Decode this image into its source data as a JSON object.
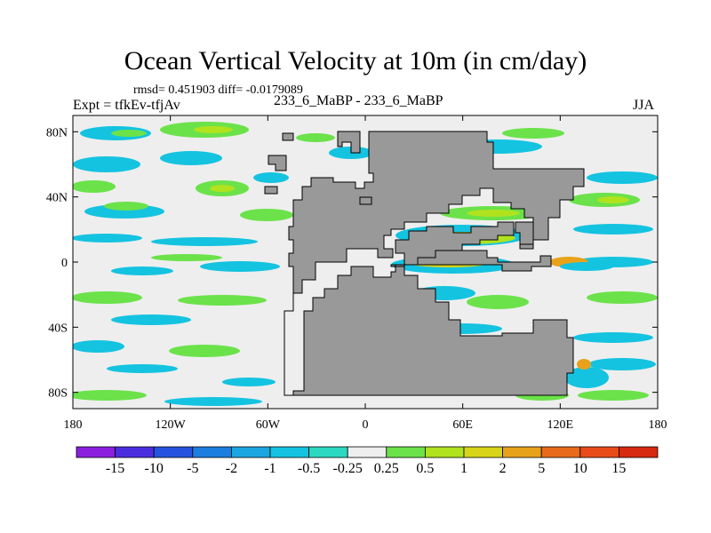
{
  "title": "Ocean Vertical Velocity at 10m (in cm/day)",
  "stats_line": "rmsd= 0.451903 diff= -0.0179089",
  "experiment_label": "Expt = tfkEv-tfjAv",
  "center_label": "233_6_MaBP - 233_6_MaBP",
  "season": "JJA",
  "map": {
    "projection": "cylindrical-equidistant",
    "lon_range": [
      -180,
      180
    ],
    "lat_range": [
      -90,
      90
    ],
    "land_color": "#999999",
    "background_color": "#eeeeee"
  },
  "chart_data": {
    "type": "heatmap",
    "x_ticks": [
      "180",
      "120W",
      "60W",
      "0",
      "60E",
      "120E",
      "180"
    ],
    "y_ticks": [
      "80N",
      "40N",
      "0",
      "40S",
      "80S"
    ],
    "colorbar": {
      "labels": [
        "-15",
        "-10",
        "-5",
        "-2",
        "-1",
        "-0.5",
        "-0.25",
        "0.25",
        "0.5",
        "1",
        "2",
        "5",
        "10",
        "15"
      ],
      "colors": [
        "#8a1fe0",
        "#4b2de0",
        "#2553e0",
        "#1c7fe0",
        "#1aa6e0",
        "#14c3e0",
        "#2cd8c0",
        "#eeeeee",
        "#6be24a",
        "#b0e21e",
        "#d8d418",
        "#e8a21a",
        "#e86a1a",
        "#e84a1a",
        "#d82a10"
      ]
    }
  }
}
